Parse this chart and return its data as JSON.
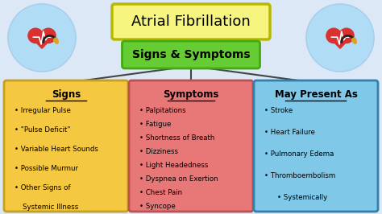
{
  "title": "Atrial Fibrillation",
  "subtitle": "Signs & Symptoms",
  "bg_color": "#dce8f5",
  "title_box_color": "#f5f580",
  "title_box_edge": "#b8b800",
  "subtitle_box_color": "#66cc33",
  "subtitle_box_edge": "#44aa11",
  "signs_box_color": "#f5c842",
  "signs_box_edge": "#c8a020",
  "symptoms_box_color": "#e87878",
  "symptoms_box_edge": "#c05050",
  "maypresent_box_color": "#80c8e8",
  "maypresent_box_edge": "#3080b0",
  "signs_title": "Signs",
  "signs_items": [
    "Irregular Pulse",
    "\"Pulse Deficit\"",
    "Variable Heart Sounds",
    "Possible Murmur",
    "Other Signs of",
    "  Systemic Illness"
  ],
  "symptoms_title": "Symptoms",
  "symptoms_items": [
    "Palpitations",
    "Fatigue",
    "Shortness of Breath",
    "Dizziness",
    "Light Headedness",
    "Dyspnea on Exertion",
    "Chest Pain",
    "Syncope"
  ],
  "maypresent_title": "May Present As",
  "maypresent_items": [
    "Stroke",
    "Heart Failure",
    "Pulmonary Edema",
    "Thromboembolism",
    "  Systemically"
  ],
  "icon_circle_color": "#b0ddf5",
  "line_color": "#444444"
}
